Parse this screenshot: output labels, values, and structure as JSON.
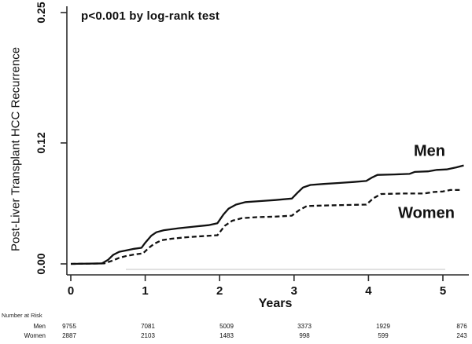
{
  "figure": {
    "annotation": "p<0.001 by log-rank test",
    "accent_color": "#111111",
    "background_color": "#ffffff"
  },
  "chart_data": {
    "type": "line",
    "title": "",
    "annotation": "p<0.001 by log-rank test",
    "xlabel": "Years",
    "ylabel": "Post-Liver Transplant HCC Recurrence",
    "xlim": [
      0,
      5.3
    ],
    "ylim": [
      0,
      0.25
    ],
    "grid": false,
    "legend_position": "inline-right",
    "x_tick_labels": [
      "0",
      "1",
      "2",
      "3",
      "4",
      "5"
    ],
    "y_tick_labels": [
      "0.00",
      "0.12",
      "0.25"
    ],
    "series": [
      {
        "name": "Men",
        "style": "solid",
        "color": "#111111",
        "points": [
          [
            0,
            0
          ],
          [
            0.42,
            0.0005
          ],
          [
            0.5,
            0.004
          ],
          [
            0.57,
            0.009
          ],
          [
            0.65,
            0.012
          ],
          [
            0.75,
            0.0135
          ],
          [
            0.85,
            0.015
          ],
          [
            0.95,
            0.016
          ],
          [
            1.0,
            0.021
          ],
          [
            1.08,
            0.028
          ],
          [
            1.15,
            0.0315
          ],
          [
            1.25,
            0.0335
          ],
          [
            1.45,
            0.0355
          ],
          [
            1.65,
            0.037
          ],
          [
            1.85,
            0.0385
          ],
          [
            1.97,
            0.0405
          ],
          [
            2.05,
            0.049
          ],
          [
            2.12,
            0.055
          ],
          [
            2.22,
            0.059
          ],
          [
            2.35,
            0.0615
          ],
          [
            2.55,
            0.0625
          ],
          [
            2.75,
            0.0635
          ],
          [
            2.97,
            0.065
          ],
          [
            3.05,
            0.071
          ],
          [
            3.12,
            0.076
          ],
          [
            3.22,
            0.0785
          ],
          [
            3.4,
            0.0795
          ],
          [
            3.6,
            0.0805
          ],
          [
            3.8,
            0.0815
          ],
          [
            3.97,
            0.0825
          ],
          [
            4.05,
            0.086
          ],
          [
            4.12,
            0.0885
          ],
          [
            4.35,
            0.089
          ],
          [
            4.55,
            0.0895
          ],
          [
            4.62,
            0.0915
          ],
          [
            4.8,
            0.092
          ],
          [
            4.92,
            0.0935
          ],
          [
            5.05,
            0.094
          ],
          [
            5.18,
            0.096
          ],
          [
            5.28,
            0.098
          ]
        ]
      },
      {
        "name": "Women",
        "style": "dashed",
        "color": "#111111",
        "points": [
          [
            0,
            0
          ],
          [
            0.45,
            0.0005
          ],
          [
            0.55,
            0.003
          ],
          [
            0.65,
            0.006
          ],
          [
            0.75,
            0.008
          ],
          [
            0.87,
            0.0095
          ],
          [
            0.97,
            0.0105
          ],
          [
            1.05,
            0.016
          ],
          [
            1.12,
            0.02
          ],
          [
            1.22,
            0.0235
          ],
          [
            1.35,
            0.025
          ],
          [
            1.55,
            0.0265
          ],
          [
            1.75,
            0.0275
          ],
          [
            1.97,
            0.0285
          ],
          [
            2.07,
            0.038
          ],
          [
            2.17,
            0.043
          ],
          [
            2.3,
            0.0455
          ],
          [
            2.5,
            0.0465
          ],
          [
            2.75,
            0.047
          ],
          [
            2.97,
            0.048
          ],
          [
            3.07,
            0.0535
          ],
          [
            3.17,
            0.0575
          ],
          [
            3.35,
            0.058
          ],
          [
            3.65,
            0.0585
          ],
          [
            3.97,
            0.059
          ],
          [
            4.07,
            0.0655
          ],
          [
            4.17,
            0.0695
          ],
          [
            4.45,
            0.07
          ],
          [
            4.75,
            0.07
          ],
          [
            4.87,
            0.0715
          ],
          [
            5.0,
            0.072
          ],
          [
            5.1,
            0.0735
          ],
          [
            5.25,
            0.0735
          ]
        ]
      }
    ],
    "risk_table": {
      "title": "Number at Risk",
      "rows": [
        {
          "label": "Men",
          "values": [
            "9755",
            "7081",
            "5009",
            "3373",
            "1929",
            "876"
          ]
        },
        {
          "label": "Women",
          "values": [
            "2887",
            "2103",
            "1483",
            "998",
            "599",
            "243"
          ]
        }
      ]
    }
  }
}
